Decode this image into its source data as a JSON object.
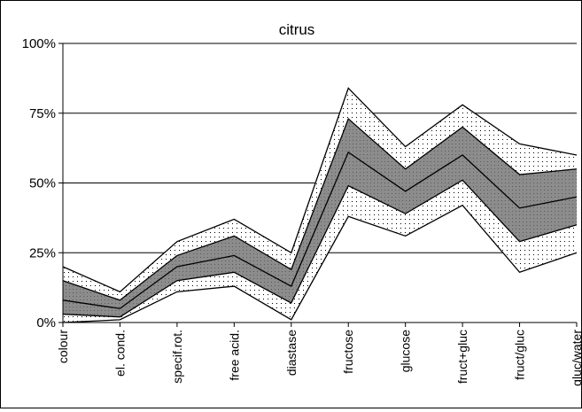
{
  "chart_data": {
    "type": "area",
    "title": "citrus",
    "xlabel": "",
    "ylabel": "",
    "ylim": [
      0,
      100
    ],
    "y_tick_labels": [
      "0%",
      "25%",
      "50%",
      "75%",
      "100%"
    ],
    "y_ticks": [
      0,
      25,
      50,
      75,
      100
    ],
    "grid": true,
    "categories": [
      "colour",
      "el. cond.",
      "specif.rot.",
      "free acid.",
      "diastase",
      "fructose",
      "glucose",
      "fruct+gluc",
      "fruct/gluc",
      "gluc/water"
    ],
    "series": [
      {
        "values": [
          0,
          1,
          11,
          13,
          1,
          38,
          31,
          42,
          18,
          25
        ],
        "style": "line"
      },
      {
        "values": [
          3,
          2,
          15,
          18,
          7,
          49,
          39,
          51,
          29,
          35
        ],
        "style": "line"
      },
      {
        "values": [
          8,
          5,
          20,
          24,
          13,
          61,
          47,
          60,
          41,
          45
        ],
        "style": "line"
      },
      {
        "values": [
          15,
          8,
          24,
          31,
          19,
          73,
          55,
          70,
          53,
          55
        ],
        "style": "line"
      },
      {
        "values": [
          20,
          11,
          29,
          37,
          25,
          84,
          63,
          78,
          64,
          60
        ],
        "style": "line"
      }
    ],
    "bands": [
      {
        "lower": 0,
        "upper": 1,
        "fill": "dotted"
      },
      {
        "lower": 1,
        "upper": 3,
        "fill": "dark-grey"
      },
      {
        "lower": 3,
        "upper": 4,
        "fill": "dotted"
      }
    ],
    "colors": {
      "band_dark": "#8c8c8c",
      "line": "#000000",
      "grid": "#000000"
    }
  }
}
